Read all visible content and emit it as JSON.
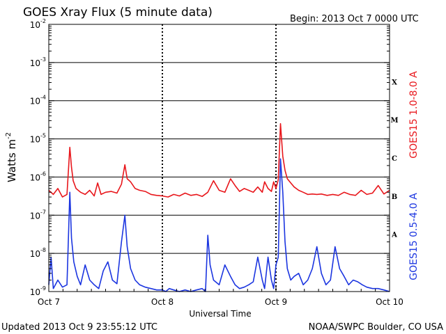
{
  "header": {
    "title": "GOES Xray Flux (5 minute data)",
    "begin": "Begin:  2013 Oct 7 0000 UTC"
  },
  "footer": {
    "updated": "Updated 2013 Oct  9 23:55:12 UTC",
    "credit": "NOAA/SWPC Boulder, CO USA"
  },
  "chart_data": {
    "type": "line",
    "title": "GOES Xray Flux (5 minute data)",
    "xlabel": "Universal Time",
    "ylabel": "Watts m",
    "ylabel_superscript": "-2",
    "y_scale": "log",
    "ylim": [
      1e-09,
      0.01
    ],
    "xlim": [
      0,
      3
    ],
    "x_unit": "days since 2013 Oct 7 0000 UTC",
    "x_ticks": [
      {
        "value": 0,
        "label": "Oct 7"
      },
      {
        "value": 1,
        "label": "Oct 8"
      },
      {
        "value": 2,
        "label": "Oct 9"
      },
      {
        "value": 3,
        "label": "Oct 10"
      }
    ],
    "y_ticks": [
      {
        "exp": -9,
        "base": "10",
        "sup": "-9"
      },
      {
        "exp": -8,
        "base": "10",
        "sup": "-8"
      },
      {
        "exp": -7,
        "base": "10",
        "sup": "-7"
      },
      {
        "exp": -6,
        "base": "10",
        "sup": "-6"
      },
      {
        "exp": -5,
        "base": "10",
        "sup": "-5"
      },
      {
        "exp": -4,
        "base": "10",
        "sup": "-4"
      },
      {
        "exp": -3,
        "base": "10",
        "sup": "-3"
      },
      {
        "exp": -2,
        "base": "10",
        "sup": "-2"
      }
    ],
    "flare_classes": [
      {
        "label": "A",
        "center_exp": -7.5
      },
      {
        "label": "B",
        "center_exp": -6.5
      },
      {
        "label": "C",
        "center_exp": -5.5
      },
      {
        "label": "M",
        "center_exp": -4.5
      },
      {
        "label": "X",
        "center_exp": -3.5
      }
    ],
    "grid": true,
    "series": [
      {
        "name": "GOES15 1.0-8.0 A",
        "color": "#e8161b",
        "x": [
          0.0,
          0.04,
          0.08,
          0.12,
          0.16,
          0.185,
          0.2,
          0.215,
          0.24,
          0.28,
          0.32,
          0.36,
          0.4,
          0.43,
          0.46,
          0.5,
          0.55,
          0.6,
          0.64,
          0.67,
          0.69,
          0.72,
          0.76,
          0.8,
          0.85,
          0.9,
          0.95,
          1.0,
          1.05,
          1.1,
          1.15,
          1.2,
          1.25,
          1.3,
          1.35,
          1.4,
          1.45,
          1.5,
          1.55,
          1.6,
          1.64,
          1.68,
          1.72,
          1.76,
          1.8,
          1.84,
          1.88,
          1.9,
          1.93,
          1.96,
          1.98,
          2.0,
          2.02,
          2.04,
          2.06,
          2.08,
          2.1,
          2.13,
          2.16,
          2.2,
          2.24,
          2.28,
          2.32,
          2.36,
          2.4,
          2.45,
          2.5,
          2.55,
          2.6,
          2.65,
          2.7,
          2.75,
          2.8,
          2.85,
          2.9,
          2.95,
          3.0
        ],
        "y": [
          4.5e-07,
          3.5e-07,
          5e-07,
          3e-07,
          3.5e-07,
          6e-06,
          1.8e-06,
          8e-07,
          5e-07,
          4e-07,
          3.5e-07,
          4.5e-07,
          3.2e-07,
          7e-07,
          3.5e-07,
          4e-07,
          4.2e-07,
          3.8e-07,
          6.5e-07,
          2.1e-06,
          9e-07,
          7.5e-07,
          5e-07,
          4.5e-07,
          4.2e-07,
          3.5e-07,
          3.3e-07,
          3.2e-07,
          3e-07,
          3.5e-07,
          3.2e-07,
          3.8e-07,
          3.3e-07,
          3.5e-07,
          3.1e-07,
          4e-07,
          8e-07,
          4.5e-07,
          4e-07,
          9e-07,
          6e-07,
          4.2e-07,
          5e-07,
          4.5e-07,
          4e-07,
          5.5e-07,
          4e-07,
          7.5e-07,
          5e-07,
          4.2e-07,
          7.5e-07,
          5e-07,
          8.5e-07,
          2.5e-05,
          3.5e-06,
          1.5e-06,
          9e-07,
          7e-07,
          5.5e-07,
          4.5e-07,
          4e-07,
          3.5e-07,
          3.6e-07,
          3.5e-07,
          3.6e-07,
          3.3e-07,
          3.5e-07,
          3.3e-07,
          4e-07,
          3.5e-07,
          3.3e-07,
          4.5e-07,
          3.5e-07,
          3.8e-07,
          6e-07,
          3.6e-07,
          4.5e-07
        ]
      },
      {
        "name": "GOES15 0.5-4.0 A",
        "color": "#1b35e0",
        "x": [
          0.0,
          0.02,
          0.04,
          0.08,
          0.12,
          0.16,
          0.185,
          0.2,
          0.22,
          0.25,
          0.28,
          0.32,
          0.36,
          0.4,
          0.44,
          0.48,
          0.52,
          0.56,
          0.6,
          0.64,
          0.67,
          0.69,
          0.72,
          0.76,
          0.8,
          0.85,
          0.9,
          0.95,
          1.0,
          1.03,
          1.06,
          1.1,
          1.15,
          1.2,
          1.25,
          1.3,
          1.35,
          1.38,
          1.4,
          1.42,
          1.45,
          1.5,
          1.55,
          1.6,
          1.64,
          1.68,
          1.72,
          1.76,
          1.8,
          1.84,
          1.88,
          1.9,
          1.93,
          1.96,
          1.98,
          2.0,
          2.02,
          2.04,
          2.06,
          2.08,
          2.1,
          2.13,
          2.16,
          2.2,
          2.24,
          2.28,
          2.32,
          2.36,
          2.4,
          2.44,
          2.48,
          2.52,
          2.56,
          2.6,
          2.64,
          2.68,
          2.72,
          2.76,
          2.8,
          2.85,
          2.9,
          2.95,
          3.0
        ],
        "y": [
          1.5e-09,
          8e-09,
          1.2e-09,
          2e-09,
          1.3e-09,
          1.5e-09,
          4e-07,
          2.5e-08,
          6e-09,
          2.5e-09,
          1.5e-09,
          5e-09,
          2e-09,
          1.5e-09,
          1.2e-09,
          3.5e-09,
          6e-09,
          2e-09,
          1.6e-09,
          2e-08,
          1e-07,
          1.5e-08,
          4e-09,
          2e-09,
          1.5e-09,
          1.3e-09,
          1.2e-09,
          1.1e-09,
          1.1e-09,
          1e-09,
          1.2e-09,
          1.1e-09,
          1e-09,
          1.1e-09,
          1e-09,
          1.1e-09,
          1.2e-09,
          1e-09,
          3e-08,
          5e-09,
          2e-09,
          1.5e-09,
          5e-09,
          2.5e-09,
          1.5e-09,
          1.2e-09,
          1.3e-09,
          1.5e-09,
          1.8e-09,
          8e-09,
          2e-09,
          1.2e-09,
          8e-09,
          2e-09,
          1.2e-09,
          5e-09,
          8e-09,
          3e-06,
          4e-07,
          2e-08,
          4e-09,
          2e-09,
          2.5e-09,
          3e-09,
          1.5e-09,
          2e-09,
          4e-09,
          1.5e-08,
          3e-09,
          1.5e-09,
          2e-09,
          1.5e-08,
          4e-09,
          2.5e-09,
          1.5e-09,
          2e-09,
          1.8e-09,
          1.5e-09,
          1.3e-09,
          1.2e-09,
          1.2e-09,
          1.1e-09,
          1e-09
        ]
      }
    ]
  }
}
